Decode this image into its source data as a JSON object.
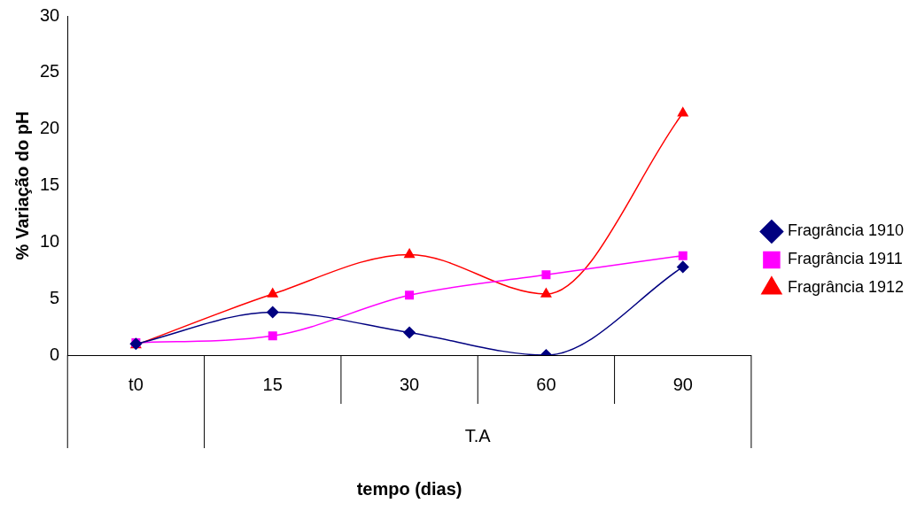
{
  "chart_data": {
    "type": "line",
    "xlabel": "tempo (dias)",
    "ylabel": "% Variação do pH",
    "categories": [
      "t0",
      "15",
      "30",
      "60",
      "90"
    ],
    "annotations": [
      "T.A"
    ],
    "series": [
      {
        "name": "Fragrância 1910",
        "color": "#000080",
        "marker": "diamond",
        "values": [
          1,
          3.8,
          2,
          0,
          7.8
        ]
      },
      {
        "name": "Fragrância 1911",
        "color": "#ff00ff",
        "marker": "square",
        "values": [
          1.1,
          1.7,
          5.3,
          7.1,
          8.8
        ]
      },
      {
        "name": "Fragrância 1912",
        "color": "#ff0000",
        "marker": "triangle",
        "values": [
          0.9,
          5.4,
          8.9,
          5.4,
          21.4
        ]
      }
    ],
    "ylim": [
      0,
      30
    ],
    "yticks": [
      0,
      5,
      10,
      15,
      20,
      25,
      30
    ],
    "grid": false,
    "legend": "right",
    "line_style": "solid"
  }
}
